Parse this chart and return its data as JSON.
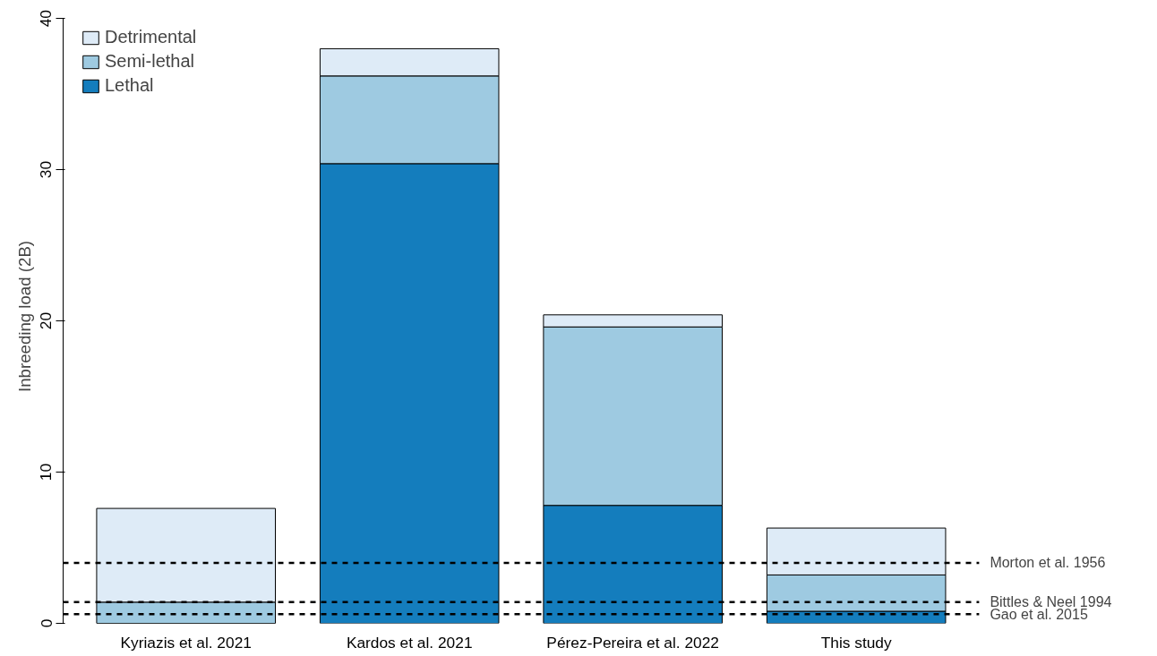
{
  "chart_data": {
    "type": "bar",
    "stacked": true,
    "ylabel": "Inbreeding load (2B)",
    "categories": [
      "Kyriazis et al. 2021",
      "Kardos et al. 2021",
      "Pérez-Pereira et al. 2022",
      "This study"
    ],
    "series": [
      {
        "name": "Lethal",
        "color": "#147dbd",
        "values": [
          0,
          30.4,
          7.8,
          0.8
        ]
      },
      {
        "name": "Semi-lethal",
        "color": "#9ecae1",
        "values": [
          1.4,
          5.8,
          11.8,
          2.4
        ]
      },
      {
        "name": "Detrimental",
        "color": "#deebf7",
        "values": [
          6.2,
          1.8,
          0.8,
          3.1
        ]
      }
    ],
    "ylim": [
      0,
      40
    ],
    "yticks": [
      0,
      10,
      20,
      30,
      40
    ],
    "grid": false,
    "legend": "top left",
    "ref_lines": [
      {
        "axis": "y",
        "value": 4.0,
        "label": "Morton et al. 1956",
        "line_style": "dashed",
        "color": "#000000"
      },
      {
        "axis": "y",
        "value": 1.4,
        "label": "Bittles & Neel 1994",
        "line_style": "dashed",
        "color": "#000000"
      },
      {
        "axis": "y",
        "value": 0.6,
        "label": "Gao et al. 2015",
        "line_style": "dashed",
        "color": "#000000"
      }
    ]
  }
}
